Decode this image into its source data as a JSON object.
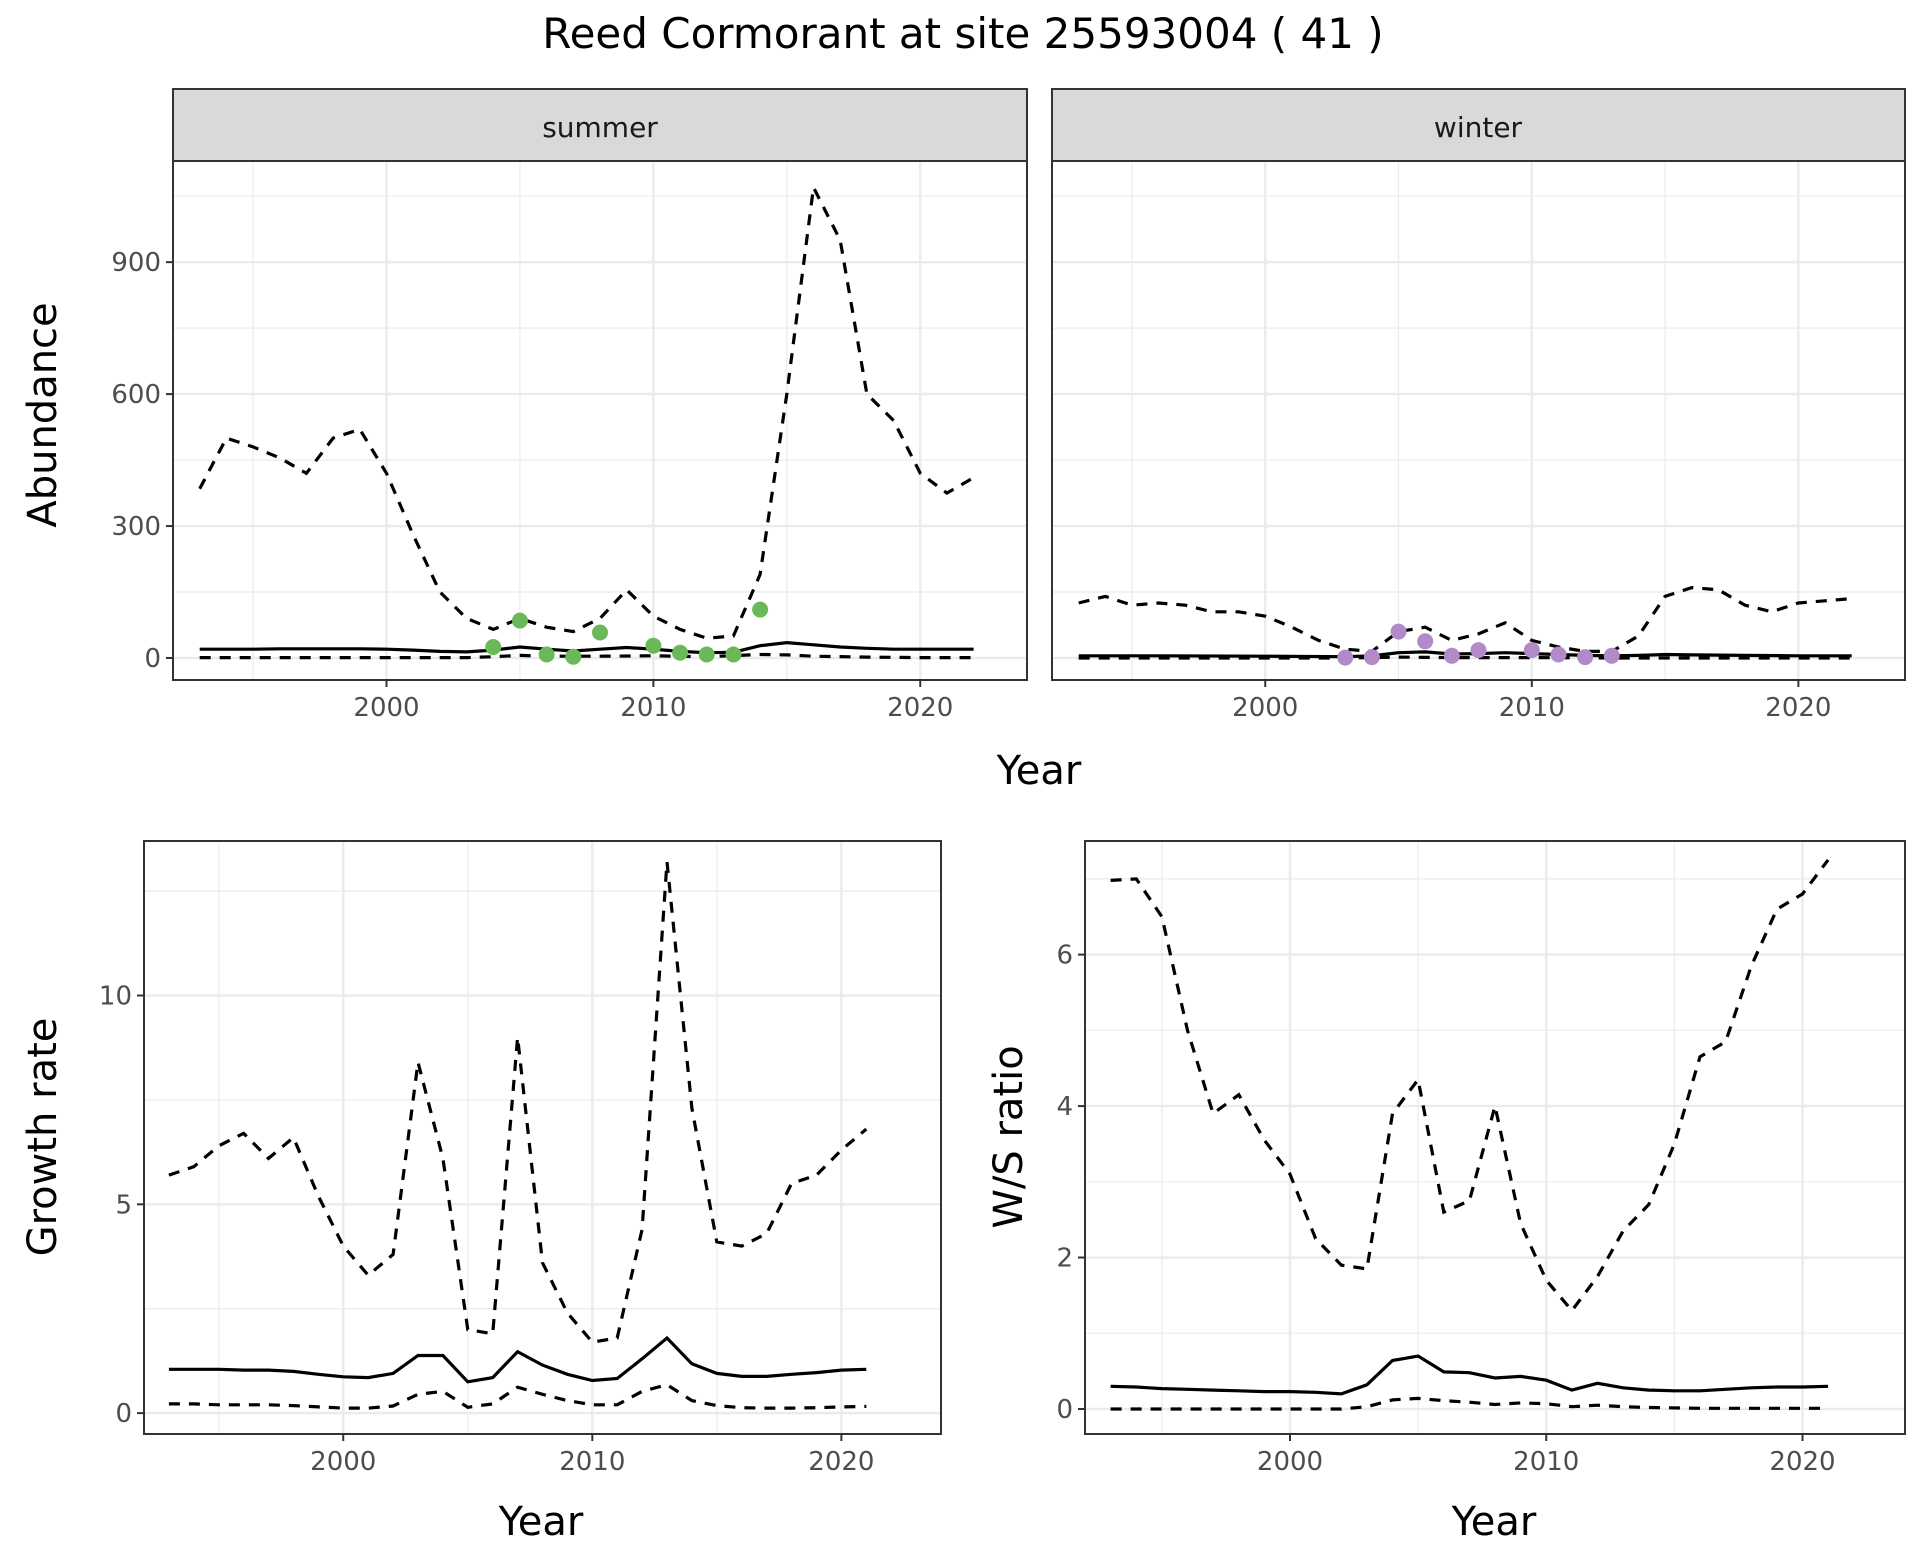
{
  "title": "Reed Cormorant at site 25593004 ( 41 )",
  "colors": {
    "summer_points": "#6ab858",
    "winter_points": "#b38ac8",
    "line": "#000000"
  },
  "chart_data": [
    {
      "type": "line",
      "facet": "summer",
      "xlabel": "Year",
      "ylabel": "Abundance",
      "xlim": [
        1992,
        2024
      ],
      "ylim": [
        -50,
        1130
      ],
      "xticks": [
        "2000",
        "2010",
        "2020"
      ],
      "yticks": [
        "0",
        "300",
        "600",
        "900"
      ],
      "grid": true,
      "series": [
        {
          "style": "dashed",
          "x": [
            1993,
            1994,
            1995,
            1996,
            1997,
            1998,
            1999,
            2000,
            2001,
            2002,
            2003,
            2004,
            2005,
            2006,
            2007,
            2008,
            2009,
            2010,
            2011,
            2012,
            2013,
            2014,
            2015,
            2016,
            2017,
            2018,
            2019,
            2020,
            2021,
            2022
          ],
          "y": [
            385,
            500,
            480,
            455,
            420,
            500,
            520,
            420,
            280,
            150,
            90,
            65,
            90,
            70,
            60,
            90,
            155,
            95,
            65,
            45,
            50,
            190,
            600,
            1070,
            950,
            600,
            540,
            420,
            375,
            410
          ]
        },
        {
          "style": "solid",
          "x": [
            1993,
            1994,
            1995,
            1996,
            1997,
            1998,
            1999,
            2000,
            2001,
            2002,
            2003,
            2004,
            2005,
            2006,
            2007,
            2008,
            2009,
            2010,
            2011,
            2012,
            2013,
            2014,
            2015,
            2016,
            2017,
            2018,
            2019,
            2020,
            2021,
            2022
          ],
          "y": [
            20,
            20,
            20,
            21,
            21,
            21,
            21,
            20,
            18,
            15,
            14,
            18,
            25,
            20,
            16,
            20,
            24,
            20,
            15,
            12,
            13,
            28,
            35,
            30,
            25,
            22,
            20,
            20,
            20,
            20
          ]
        },
        {
          "style": "dashed",
          "x": [
            1993,
            1996,
            2000,
            2003,
            2004,
            2005,
            2006,
            2008,
            2010,
            2012,
            2014,
            2015,
            2016,
            2018,
            2020,
            2022
          ],
          "y": [
            1,
            1,
            1,
            1,
            3,
            6,
            4,
            4,
            5,
            3,
            8,
            7,
            4,
            2,
            1,
            1
          ]
        }
      ],
      "points": {
        "x": [
          2004,
          2005,
          2006,
          2007,
          2008,
          2010,
          2011,
          2012,
          2013,
          2014
        ],
        "y": [
          25,
          85,
          8,
          3,
          58,
          28,
          12,
          8,
          8,
          110
        ]
      }
    },
    {
      "type": "line",
      "facet": "winter",
      "xlabel": "Year",
      "ylabel": "",
      "xlim": [
        1992,
        2024
      ],
      "ylim": [
        -50,
        1130
      ],
      "xticks": [
        "2000",
        "2010",
        "2020"
      ],
      "yticks": [],
      "grid": true,
      "series": [
        {
          "style": "dashed",
          "x": [
            1993,
            1994,
            1995,
            1996,
            1997,
            1998,
            1999,
            2000,
            2001,
            2002,
            2003,
            2004,
            2005,
            2006,
            2007,
            2008,
            2009,
            2010,
            2011,
            2012,
            2013,
            2014,
            2015,
            2016,
            2017,
            2018,
            2019,
            2020,
            2021,
            2022
          ],
          "y": [
            125,
            140,
            120,
            125,
            120,
            105,
            105,
            95,
            70,
            40,
            20,
            15,
            60,
            70,
            40,
            55,
            80,
            40,
            25,
            15,
            15,
            50,
            140,
            160,
            155,
            120,
            105,
            125,
            130,
            135
          ]
        },
        {
          "style": "solid",
          "x": [
            1993,
            1996,
            2000,
            2003,
            2004,
            2005,
            2006,
            2007,
            2008,
            2009,
            2010,
            2011,
            2012,
            2013,
            2014,
            2015,
            2016,
            2018,
            2020,
            2022
          ],
          "y": [
            5,
            5,
            4,
            3,
            5,
            12,
            14,
            9,
            10,
            12,
            10,
            8,
            6,
            5,
            6,
            8,
            7,
            6,
            5,
            5
          ]
        },
        {
          "style": "dashed",
          "x": [
            1993,
            2000,
            2003,
            2005,
            2007,
            2010,
            2013,
            2016,
            2022
          ],
          "y": [
            0,
            0,
            0,
            2,
            1,
            1,
            0,
            0,
            0
          ]
        }
      ],
      "points": {
        "x": [
          2003,
          2004,
          2005,
          2006,
          2007,
          2008,
          2010,
          2011,
          2012,
          2013
        ],
        "y": [
          1,
          2,
          60,
          38,
          5,
          18,
          18,
          8,
          2,
          5
        ]
      }
    },
    {
      "type": "line",
      "xlabel": "Year",
      "ylabel": "Growth rate",
      "xlim": [
        1992,
        2024
      ],
      "ylim": [
        -0.5,
        13.7
      ],
      "xticks": [
        "2000",
        "2010",
        "2020"
      ],
      "yticks": [
        "0",
        "5",
        "10"
      ],
      "grid": true,
      "series": [
        {
          "style": "dashed",
          "x": [
            1993,
            1994,
            1995,
            1996,
            1997,
            1998,
            1999,
            2000,
            2001,
            2002,
            2003,
            2004,
            2005,
            2006,
            2007,
            2008,
            2009,
            2010,
            2011,
            2012,
            2013,
            2014,
            2015,
            2016,
            2017,
            2018,
            2019,
            2020,
            2021
          ],
          "y": [
            5.7,
            5.9,
            6.4,
            6.7,
            6.1,
            6.6,
            5.2,
            4.0,
            3.3,
            3.8,
            8.4,
            6.1,
            2.0,
            1.9,
            9.0,
            3.6,
            2.4,
            1.7,
            1.8,
            4.4,
            13.2,
            7.3,
            4.1,
            4.0,
            4.3,
            5.5,
            5.7,
            6.3,
            6.8
          ]
        },
        {
          "style": "solid",
          "x": [
            1993,
            1994,
            1995,
            1996,
            1997,
            1998,
            1999,
            2000,
            2001,
            2002,
            2003,
            2004,
            2005,
            2006,
            2007,
            2008,
            2009,
            2010,
            2011,
            2012,
            2013,
            2014,
            2015,
            2016,
            2017,
            2018,
            2019,
            2020,
            2021
          ],
          "y": [
            1.05,
            1.05,
            1.05,
            1.03,
            1.03,
            1.0,
            0.93,
            0.87,
            0.85,
            0.95,
            1.38,
            1.38,
            0.75,
            0.85,
            1.47,
            1.15,
            0.93,
            0.78,
            0.83,
            1.3,
            1.8,
            1.18,
            0.95,
            0.88,
            0.88,
            0.93,
            0.97,
            1.03,
            1.05
          ]
        },
        {
          "style": "dashed",
          "x": [
            1993,
            1994,
            1995,
            1996,
            1997,
            1998,
            1999,
            2000,
            2001,
            2002,
            2003,
            2004,
            2005,
            2006,
            2007,
            2008,
            2009,
            2010,
            2011,
            2012,
            2013,
            2014,
            2015,
            2016,
            2017,
            2018,
            2019,
            2020,
            2021
          ],
          "y": [
            0.22,
            0.22,
            0.2,
            0.2,
            0.2,
            0.18,
            0.15,
            0.12,
            0.12,
            0.17,
            0.45,
            0.52,
            0.14,
            0.22,
            0.62,
            0.45,
            0.3,
            0.2,
            0.2,
            0.52,
            0.68,
            0.3,
            0.18,
            0.13,
            0.12,
            0.12,
            0.13,
            0.15,
            0.16
          ]
        }
      ]
    },
    {
      "type": "line",
      "xlabel": "Year",
      "ylabel": "W/S ratio",
      "xlim": [
        1992,
        2024
      ],
      "ylim": [
        -0.33,
        7.5
      ],
      "xticks": [
        "2000",
        "2010",
        "2020"
      ],
      "yticks": [
        "0",
        "2",
        "4",
        "6"
      ],
      "grid": true,
      "series": [
        {
          "style": "dashed",
          "x": [
            1993,
            1994,
            1995,
            1996,
            1997,
            1998,
            1999,
            2000,
            2001,
            2002,
            2003,
            2004,
            2005,
            2006,
            2007,
            2008,
            2009,
            2010,
            2011,
            2012,
            2013,
            2014,
            2015,
            2016,
            2017,
            2018,
            2019,
            2020,
            2021
          ],
          "y": [
            6.98,
            7.0,
            6.5,
            5.0,
            3.9,
            4.15,
            3.55,
            3.1,
            2.25,
            1.9,
            1.85,
            3.9,
            4.35,
            2.6,
            2.75,
            4.0,
            2.45,
            1.7,
            1.3,
            1.75,
            2.35,
            2.7,
            3.5,
            4.65,
            4.85,
            5.85,
            6.6,
            6.8,
            7.25
          ]
        },
        {
          "style": "solid",
          "x": [
            1993,
            1994,
            1995,
            1996,
            1997,
            1998,
            1999,
            2000,
            2001,
            2002,
            2003,
            2004,
            2005,
            2006,
            2007,
            2008,
            2009,
            2010,
            2011,
            2012,
            2013,
            2014,
            2015,
            2016,
            2017,
            2018,
            2019,
            2020,
            2021
          ],
          "y": [
            0.3,
            0.29,
            0.27,
            0.26,
            0.25,
            0.24,
            0.23,
            0.23,
            0.22,
            0.2,
            0.32,
            0.64,
            0.7,
            0.49,
            0.48,
            0.41,
            0.43,
            0.38,
            0.25,
            0.34,
            0.28,
            0.25,
            0.24,
            0.24,
            0.26,
            0.28,
            0.29,
            0.29,
            0.3
          ]
        },
        {
          "style": "dashed",
          "x": [
            1993,
            1997,
            2001,
            2002,
            2003,
            2004,
            2005,
            2006,
            2007,
            2008,
            2009,
            2010,
            2011,
            2012,
            2013,
            2014,
            2016,
            2021
          ],
          "y": [
            0,
            0,
            0,
            0,
            0.03,
            0.12,
            0.14,
            0.11,
            0.09,
            0.06,
            0.08,
            0.07,
            0.03,
            0.05,
            0.03,
            0.02,
            0.01,
            0.01
          ]
        }
      ]
    }
  ]
}
